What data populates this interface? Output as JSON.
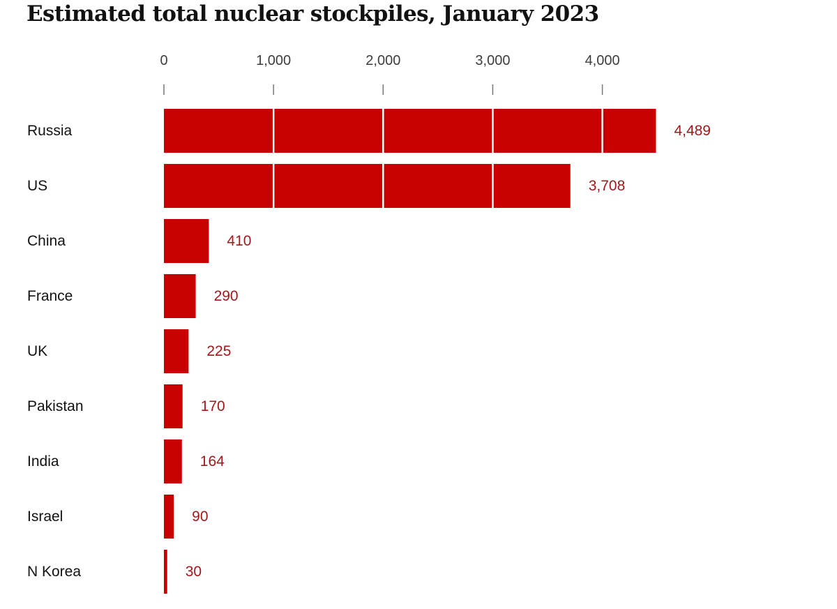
{
  "chart_data": {
    "type": "bar",
    "orientation": "horizontal",
    "title": "Estimated total nuclear stockpiles, January 2023",
    "xlabel": "",
    "ylabel": "",
    "xlim": [
      0,
      4489
    ],
    "ticks": [
      {
        "value": 0,
        "label": "0"
      },
      {
        "value": 1000,
        "label": "1,000"
      },
      {
        "value": 2000,
        "label": "2,000"
      },
      {
        "value": 3000,
        "label": "3,000"
      },
      {
        "value": 4000,
        "label": "4,000"
      }
    ],
    "categories": [
      "Russia",
      "US",
      "China",
      "France",
      "UK",
      "Pakistan",
      "India",
      "Israel",
      "N Korea"
    ],
    "values": [
      4489,
      3708,
      410,
      290,
      225,
      170,
      164,
      90,
      30
    ],
    "value_labels": [
      "4,489",
      "3,708",
      "410",
      "290",
      "225",
      "170",
      "164",
      "90",
      "30"
    ],
    "bar_color": "#c70000",
    "value_label_color": "#a5171b",
    "grid": false
  }
}
